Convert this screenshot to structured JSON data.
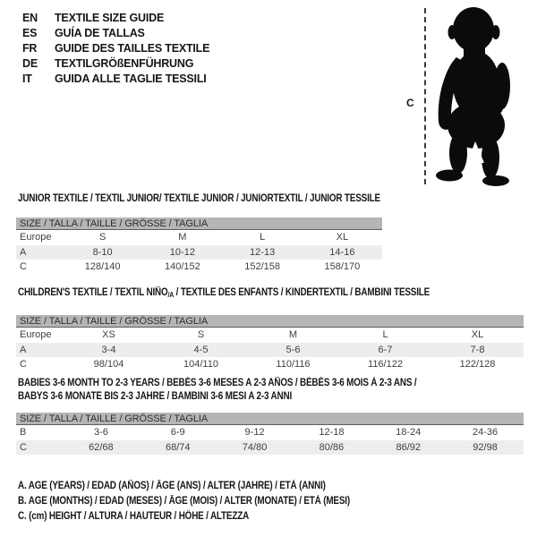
{
  "colors": {
    "background": "#ffffff",
    "table_header_bar": "#b5b5b5",
    "shaded_row": "#ededed",
    "text": "#161616",
    "silhouette": "#0b0b0b"
  },
  "languages": [
    {
      "code": "EN",
      "title": "TEXTILE SIZE GUIDE"
    },
    {
      "code": "ES",
      "title": "GUÍA DE TALLAS"
    },
    {
      "code": "FR",
      "title": "GUIDE DES TAILLES TEXTILE"
    },
    {
      "code": "DE",
      "title": "TEXTILGRÖßENFÜHRUNG"
    },
    {
      "code": "IT",
      "title": "GUIDA ALLE TAGLIE TESSILI"
    }
  ],
  "figure": {
    "icon": "toddler-silhouette-icon",
    "measure_label": "C"
  },
  "size_header": "SIZE / TALLA / TAILLE / GRÖSSE / TAGLIA",
  "sections": [
    {
      "heading": "JUNIOR TEXTILE / TEXTIL JUNIOR/ TEXTILE JUNIOR / JUNIORTEXTIL / JUNIOR TESSILE",
      "rows": [
        {
          "label": "Europe",
          "cells": [
            "S",
            "M",
            "L",
            "XL"
          ],
          "shaded": false
        },
        {
          "label": "A",
          "cells": [
            "8-10",
            "10-12",
            "12-13",
            "14-16"
          ],
          "shaded": true
        },
        {
          "label": "C",
          "cells": [
            "128/140",
            "140/152",
            "152/158",
            "158/170"
          ],
          "shaded": false
        }
      ]
    },
    {
      "heading_pre": "CHILDREN'S TEXTILE / TEXTIL NIÑO",
      "heading_sub": "/A",
      "heading_post": " / TEXTILE DES ENFANTS / KINDERTEXTIL / BAMBINI TESSILE",
      "rows": [
        {
          "label": "Europe",
          "cells": [
            "XS",
            "S",
            "M",
            "L",
            "XL"
          ],
          "shaded": false
        },
        {
          "label": "A",
          "cells": [
            "3-4",
            "4-5",
            "5-6",
            "6-7",
            "7-8"
          ],
          "shaded": true
        },
        {
          "label": "C",
          "cells": [
            "98/104",
            "104/110",
            "110/116",
            "116/122",
            "122/128"
          ],
          "shaded": false
        }
      ]
    },
    {
      "heading_line1": "BABIES 3-6 MONTH TO 2-3 YEARS / BEBÉS 3-6 MESES A 2-3 AÑOS / BÉBÉS 3-6 MOIS À 2-3 ANS /",
      "heading_line2": "BABYS 3-6 MONATE BIS 2-3 JAHRE / BAMBINI 3-6 MESI A 2-3 ANNI",
      "rows": [
        {
          "label": "B",
          "cells": [
            "3-6",
            "6-9",
            "9-12",
            "12-18",
            "18-24",
            "24-36"
          ],
          "shaded": false
        },
        {
          "label": "C",
          "cells": [
            "62/68",
            "68/74",
            "74/80",
            "80/86",
            "86/92",
            "92/98"
          ],
          "shaded": true
        }
      ]
    }
  ],
  "footnotes": [
    "A. AGE (YEARS) / EDAD (AÑOS) / ÂGE (ANS) / ALTER (JAHRE) / ETÀ (ANNI)",
    "B. AGE (MONTHS) / EDAD (MESES) / ÂGE (MOIS) / ALTER (MONATE) / ETÀ (MESI)",
    "C. (cm) HEIGHT / ALTURA / HAUTEUR / HÖHE / ALTEZZA"
  ]
}
